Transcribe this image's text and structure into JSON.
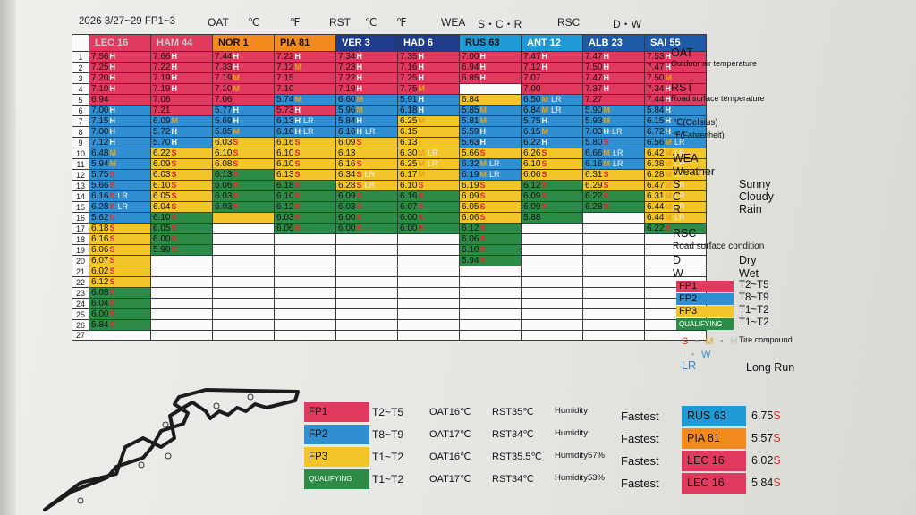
{
  "header": {
    "event": "2026 3/27~29 FP1~3",
    "oat": "OAT",
    "celsius": "℃",
    "fahrenheit": "℉",
    "rst": "RST",
    "wea": "WEA",
    "scr": "S・C・R",
    "rsc": "RSC",
    "dw": "D・W"
  },
  "colors": {
    "fp1": "#e03a5e",
    "fp2": "#2f8fd0",
    "fp3": "#f2c62b",
    "q": "#2e8b47",
    "white": "#fafafa",
    "m": "#e8a21a",
    "h": "#f4f4f4",
    "s": "#d9302a",
    "lr": "#f0f0f0"
  },
  "columns": [
    {
      "label": "LEC 16",
      "color": "#e03a5e",
      "fg": "#c9c9c9"
    },
    {
      "label": "HAM 44",
      "color": "#e03a5e",
      "fg": "#c9c9c9"
    },
    {
      "label": "NOR 1",
      "color": "#f28a1e",
      "fg": "#111111"
    },
    {
      "label": "PIA 81",
      "color": "#f28a1e",
      "fg": "#111111"
    },
    {
      "label": "VER 3",
      "color": "#1f3c8c",
      "fg": "#ffffff"
    },
    {
      "label": "HAD 6",
      "color": "#1f3c8c",
      "fg": "#ffffff"
    },
    {
      "label": "RUS 63",
      "color": "#1e9bd6",
      "fg": "#111111"
    },
    {
      "label": "ANT 12",
      "color": "#1e9bd6",
      "fg": "#ffffff"
    },
    {
      "label": "ALB 23",
      "color": "#1e5aa8",
      "fg": "#ffffff"
    },
    {
      "label": "SAI 55",
      "color": "#1e5aa8",
      "fg": "#ffffff"
    }
  ],
  "rows": [
    [
      [
        "fp1",
        "7.56",
        "H"
      ],
      [
        "fp1",
        "7.66",
        "H"
      ],
      [
        "fp1",
        "7.44",
        "H"
      ],
      [
        "fp1",
        "7.22",
        "H"
      ],
      [
        "fp1",
        "7.34",
        "H"
      ],
      [
        "fp1",
        "7.35",
        "H"
      ],
      [
        "fp1",
        "7.00",
        "H"
      ],
      [
        "fp1",
        "7.47",
        "H"
      ],
      [
        "fp1",
        "7.47",
        "H"
      ],
      [
        "fp1",
        "7.53",
        "H"
      ]
    ],
    [
      [
        "fp1",
        "7.25",
        "H"
      ],
      [
        "fp1",
        "7.22",
        "H"
      ],
      [
        "fp1",
        "7.33",
        "H"
      ],
      [
        "fp1",
        "7.12",
        "M"
      ],
      [
        "fp1",
        "7.23",
        "H"
      ],
      [
        "fp1",
        "7.16",
        "H"
      ],
      [
        "fp1",
        "6.94",
        "H"
      ],
      [
        "fp1",
        "7.12",
        "H"
      ],
      [
        "fp1",
        "7.50",
        "H"
      ],
      [
        "fp1",
        "7.47",
        "H"
      ]
    ],
    [
      [
        "fp1",
        "7.20",
        "H"
      ],
      [
        "fp1",
        "7.19",
        "H"
      ],
      [
        "fp1",
        "7.19",
        "M"
      ],
      [
        "fp1",
        "7.15",
        ""
      ],
      [
        "fp1",
        "7.22",
        "H"
      ],
      [
        "fp1",
        "7.25",
        "H"
      ],
      [
        "fp1",
        "6.85",
        "H"
      ],
      [
        "fp1",
        "7.07",
        ""
      ],
      [
        "fp1",
        "7.47",
        "H"
      ],
      [
        "fp1",
        "7.50",
        "M"
      ]
    ],
    [
      [
        "fp1",
        "7.10",
        "H"
      ],
      [
        "fp1",
        "7.19",
        "H"
      ],
      [
        "fp1",
        "7.10",
        "M"
      ],
      [
        "fp1",
        "7.10",
        ""
      ],
      [
        "fp1",
        "7.19",
        "H"
      ],
      [
        "fp1",
        "7.75",
        "M"
      ],
      [
        "white",
        "",
        ""
      ],
      [
        "fp1",
        "7.00",
        ""
      ],
      [
        "fp1",
        "7.37",
        "H"
      ],
      [
        "fp1",
        "7.34",
        "H"
      ]
    ],
    [
      [
        "fp1",
        "6.94",
        ""
      ],
      [
        "fp1",
        "7.06",
        ""
      ],
      [
        "fp1",
        "7.06",
        ""
      ],
      [
        "fp2",
        "5.74",
        "M"
      ],
      [
        "fp2",
        "6.60",
        "M"
      ],
      [
        "fp2",
        "5.91",
        "H"
      ],
      [
        "fp3",
        "6.84",
        ""
      ],
      [
        "fp2",
        "6.50",
        "M LR"
      ],
      [
        "fp1",
        "7.27",
        ""
      ],
      [
        "fp1",
        "7.44",
        "H"
      ]
    ],
    [
      [
        "fp2",
        "7.00",
        "H"
      ],
      [
        "fp1",
        "7.21",
        ""
      ],
      [
        "fp2",
        "5.77",
        "H"
      ],
      [
        "fp1",
        "5.73",
        "H"
      ],
      [
        "fp2",
        "5.96",
        "M"
      ],
      [
        "fp2",
        "6.18",
        "H"
      ],
      [
        "fp2",
        "5.85",
        "M"
      ],
      [
        "fp2",
        "6.84",
        "M LR"
      ],
      [
        "fp2",
        "5.90",
        "M"
      ],
      [
        "fp2",
        "5.84",
        "H"
      ]
    ],
    [
      [
        "fp2",
        "7.15",
        "H"
      ],
      [
        "fp2",
        "6.09",
        "M"
      ],
      [
        "fp2",
        "5.69",
        "H"
      ],
      [
        "fp2",
        "6.13",
        "H LR"
      ],
      [
        "fp2",
        "5.84",
        "H"
      ],
      [
        "fp3",
        "6.25",
        "M"
      ],
      [
        "fp2",
        "5.81",
        "M"
      ],
      [
        "fp2",
        "5.75",
        "H"
      ],
      [
        "fp2",
        "5.93",
        "M"
      ],
      [
        "fp2",
        "6.15",
        "H"
      ]
    ],
    [
      [
        "fp2",
        "7.00",
        "H"
      ],
      [
        "fp2",
        "5.72",
        "H"
      ],
      [
        "fp2",
        "5.85",
        "M"
      ],
      [
        "fp2",
        "6.10",
        "H LR"
      ],
      [
        "fp2",
        "6.16",
        "H LR"
      ],
      [
        "fp3",
        "6.15",
        ""
      ],
      [
        "fp2",
        "5.59",
        "H"
      ],
      [
        "fp2",
        "6.15",
        "M"
      ],
      [
        "fp2",
        "7.03",
        "H LR"
      ],
      [
        "fp2",
        "6.72",
        "H"
      ]
    ],
    [
      [
        "fp2",
        "7.12",
        "H"
      ],
      [
        "fp2",
        "5.70",
        "H"
      ],
      [
        "fp3",
        "6.03",
        "S"
      ],
      [
        "fp3",
        "6.16",
        "S"
      ],
      [
        "fp3",
        "6.09",
        "S"
      ],
      [
        "fp3",
        "6.13",
        ""
      ],
      [
        "fp2",
        "5.63",
        "H"
      ],
      [
        "fp2",
        "6.22",
        "H"
      ],
      [
        "fp2",
        "5.80",
        "S"
      ],
      [
        "fp2",
        "6.56",
        "M LR"
      ]
    ],
    [
      [
        "fp2",
        "6.48",
        "M"
      ],
      [
        "fp3",
        "6.22",
        "S"
      ],
      [
        "fp3",
        "6.10",
        "S"
      ],
      [
        "fp3",
        "6.10",
        "S"
      ],
      [
        "fp3",
        "6.13",
        ""
      ],
      [
        "fp3",
        "6.30",
        "M LR"
      ],
      [
        "fp3",
        "5.66",
        "S"
      ],
      [
        "fp3",
        "6.26",
        "S"
      ],
      [
        "fp2",
        "6.66",
        "M LR"
      ],
      [
        "fp3",
        "6.42",
        "M LR"
      ]
    ],
    [
      [
        "fp2",
        "5.94",
        "M"
      ],
      [
        "fp3",
        "6.09",
        "S"
      ],
      [
        "fp3",
        "6.08",
        "S"
      ],
      [
        "fp3",
        "6.10",
        "S"
      ],
      [
        "fp3",
        "6.16",
        "S"
      ],
      [
        "fp3",
        "6.25",
        "M LR"
      ],
      [
        "fp2",
        "6.32",
        "M LR"
      ],
      [
        "fp3",
        "6.10",
        "S"
      ],
      [
        "fp2",
        "6.16",
        "M LR"
      ],
      [
        "fp3",
        "6.38",
        "M LR"
      ]
    ],
    [
      [
        "fp2",
        "5.75",
        "S"
      ],
      [
        "fp3",
        "6.03",
        "S"
      ],
      [
        "q",
        "6.13",
        "S"
      ],
      [
        "fp3",
        "6.13",
        "S"
      ],
      [
        "fp3",
        "6.34",
        "S LR"
      ],
      [
        "fp3",
        "6.17",
        "M"
      ],
      [
        "fp2",
        "6.19",
        "M LR"
      ],
      [
        "fp3",
        "6.06",
        "S"
      ],
      [
        "fp3",
        "6.31",
        "S"
      ],
      [
        "fp3",
        "6.28",
        "M LR"
      ]
    ],
    [
      [
        "fp2",
        "5.66",
        "S"
      ],
      [
        "fp3",
        "6.10",
        "S"
      ],
      [
        "q",
        "6.06",
        "S"
      ],
      [
        "q",
        "6.18",
        "S"
      ],
      [
        "fp3",
        "6.28",
        "S LR"
      ],
      [
        "fp3",
        "6.10",
        "S"
      ],
      [
        "fp3",
        "6.19",
        "S"
      ],
      [
        "q",
        "6.12",
        "S"
      ],
      [
        "fp3",
        "6.29",
        "S"
      ],
      [
        "fp3",
        "6.47",
        "M LR"
      ]
    ],
    [
      [
        "fp2",
        "6.16",
        "S LR"
      ],
      [
        "fp3",
        "6.05",
        "S"
      ],
      [
        "q",
        "6.03",
        "S"
      ],
      [
        "q",
        "6.10",
        "S"
      ],
      [
        "q",
        "6.09",
        "S"
      ],
      [
        "q",
        "6.16",
        "S"
      ],
      [
        "fp3",
        "6.09",
        "S"
      ],
      [
        "q",
        "6.09",
        "S"
      ],
      [
        "q",
        "6.22",
        "S"
      ],
      [
        "fp3",
        "6.31",
        "M LR"
      ]
    ],
    [
      [
        "fp2",
        "6.28",
        "S LR"
      ],
      [
        "fp3",
        "6.04",
        "S"
      ],
      [
        "q",
        "6.03",
        "S"
      ],
      [
        "q",
        "6.12",
        "S"
      ],
      [
        "q",
        "6.03",
        "S"
      ],
      [
        "q",
        "6.07",
        "S"
      ],
      [
        "fp3",
        "6.05",
        "S"
      ],
      [
        "q",
        "6.09",
        "S"
      ],
      [
        "q",
        "6.28",
        "S"
      ],
      [
        "fp3",
        "6.44",
        "M LR"
      ]
    ],
    [
      [
        "fp2",
        "5.62",
        "S"
      ],
      [
        "q",
        "6.10",
        "S"
      ],
      [
        "fp3",
        "",
        ""
      ],
      [
        "q",
        "6.03",
        "S"
      ],
      [
        "q",
        "6.00",
        "S"
      ],
      [
        "q",
        "6.00",
        "S"
      ],
      [
        "fp3",
        "6.06",
        "S"
      ],
      [
        "q",
        "5.88",
        ""
      ],
      [
        "white",
        "",
        ""
      ],
      [
        "fp3",
        "6.44",
        "M LR"
      ]
    ],
    [
      [
        "fp3",
        "6.18",
        "S"
      ],
      [
        "q",
        "6.05",
        "S"
      ],
      [
        "white",
        "",
        ""
      ],
      [
        "q",
        "6.06",
        "S"
      ],
      [
        "q",
        "6.00",
        "S"
      ],
      [
        "q",
        "6.00",
        "S"
      ],
      [
        "q",
        "6.12",
        "S"
      ],
      [
        "white",
        "",
        ""
      ],
      [
        "white",
        "",
        ""
      ],
      [
        "q",
        "6.22",
        "S"
      ]
    ],
    [
      [
        "fp3",
        "6.16",
        "S"
      ],
      [
        "q",
        "6.00",
        "S"
      ],
      [
        "white",
        "",
        ""
      ],
      [
        "white",
        "",
        ""
      ],
      [
        "white",
        "",
        ""
      ],
      [
        "white",
        "",
        ""
      ],
      [
        "q",
        "6.06",
        "S"
      ],
      [
        "white",
        "",
        ""
      ],
      [
        "white",
        "",
        ""
      ],
      [
        "white",
        "",
        ""
      ]
    ],
    [
      [
        "fp3",
        "6.06",
        "S"
      ],
      [
        "q",
        "5.90",
        "S"
      ],
      [
        "white",
        "",
        ""
      ],
      [
        "white",
        "",
        ""
      ],
      [
        "white",
        "",
        ""
      ],
      [
        "white",
        "",
        ""
      ],
      [
        "q",
        "6.10",
        "S"
      ],
      [
        "white",
        "",
        ""
      ],
      [
        "white",
        "",
        ""
      ],
      [
        "white",
        "",
        ""
      ]
    ],
    [
      [
        "fp3",
        "6.07",
        "S"
      ],
      [
        "white",
        "",
        ""
      ],
      [
        "white",
        "",
        ""
      ],
      [
        "white",
        "",
        ""
      ],
      [
        "white",
        "",
        ""
      ],
      [
        "white",
        "",
        ""
      ],
      [
        "q",
        "5.94",
        "S"
      ],
      [
        "white",
        "",
        ""
      ],
      [
        "white",
        "",
        ""
      ],
      [
        "white",
        "",
        ""
      ]
    ],
    [
      [
        "fp3",
        "6.02",
        "S"
      ],
      [
        "white",
        "",
        ""
      ],
      [
        "white",
        "",
        ""
      ],
      [
        "white",
        "",
        ""
      ],
      [
        "white",
        "",
        ""
      ],
      [
        "white",
        "",
        ""
      ],
      [
        "white",
        "",
        ""
      ],
      [
        "white",
        "",
        ""
      ],
      [
        "white",
        "",
        ""
      ],
      [
        "white",
        "",
        ""
      ]
    ],
    [
      [
        "fp3",
        "6.12",
        "S"
      ],
      [
        "white",
        "",
        ""
      ],
      [
        "white",
        "",
        ""
      ],
      [
        "white",
        "",
        ""
      ],
      [
        "white",
        "",
        ""
      ],
      [
        "white",
        "",
        ""
      ],
      [
        "white",
        "",
        ""
      ],
      [
        "white",
        "",
        ""
      ],
      [
        "white",
        "",
        ""
      ],
      [
        "white",
        "",
        ""
      ]
    ],
    [
      [
        "q",
        "6.08",
        "S"
      ],
      [
        "white",
        "",
        ""
      ],
      [
        "white",
        "",
        ""
      ],
      [
        "white",
        "",
        ""
      ],
      [
        "white",
        "",
        ""
      ],
      [
        "white",
        "",
        ""
      ],
      [
        "white",
        "",
        ""
      ],
      [
        "white",
        "",
        ""
      ],
      [
        "white",
        "",
        ""
      ],
      [
        "white",
        "",
        ""
      ]
    ],
    [
      [
        "q",
        "6.04",
        "S"
      ],
      [
        "white",
        "",
        ""
      ],
      [
        "white",
        "",
        ""
      ],
      [
        "white",
        "",
        ""
      ],
      [
        "white",
        "",
        ""
      ],
      [
        "white",
        "",
        ""
      ],
      [
        "white",
        "",
        ""
      ],
      [
        "white",
        "",
        ""
      ],
      [
        "white",
        "",
        ""
      ],
      [
        "white",
        "",
        ""
      ]
    ],
    [
      [
        "q",
        "6.00",
        "S"
      ],
      [
        "white",
        "",
        ""
      ],
      [
        "white",
        "",
        ""
      ],
      [
        "white",
        "",
        ""
      ],
      [
        "white",
        "",
        ""
      ],
      [
        "white",
        "",
        ""
      ],
      [
        "white",
        "",
        ""
      ],
      [
        "white",
        "",
        ""
      ],
      [
        "white",
        "",
        ""
      ],
      [
        "white",
        "",
        ""
      ]
    ],
    [
      [
        "q",
        "5.84",
        "S"
      ],
      [
        "white",
        "",
        ""
      ],
      [
        "white",
        "",
        ""
      ],
      [
        "white",
        "",
        ""
      ],
      [
        "white",
        "",
        ""
      ],
      [
        "white",
        "",
        ""
      ],
      [
        "white",
        "",
        ""
      ],
      [
        "white",
        "",
        ""
      ],
      [
        "white",
        "",
        ""
      ],
      [
        "white",
        "",
        ""
      ]
    ],
    [
      [
        "white",
        "",
        ""
      ],
      [
        "white",
        "",
        ""
      ],
      [
        "white",
        "",
        ""
      ],
      [
        "white",
        "",
        ""
      ],
      [
        "white",
        "",
        ""
      ],
      [
        "white",
        "",
        ""
      ],
      [
        "white",
        "",
        ""
      ],
      [
        "white",
        "",
        ""
      ],
      [
        "white",
        "",
        ""
      ],
      [
        "white",
        "",
        ""
      ]
    ]
  ],
  "legend": {
    "oat": "OAT",
    "oat_desc": "Outdoor air temperature",
    "rst": "RST",
    "rst_desc": "Road surface temperature",
    "c": "℃(Celsius)",
    "f": "℉(Fahrenheit)",
    "wea": "WEA",
    "weather": "Weather",
    "s": "S",
    "sunny": "Sunny",
    "c2": "C",
    "cloudy": "Cloudy",
    "r": "R",
    "rain": "Rain",
    "rsc": "RSC",
    "rsc_desc": "Road surface condition",
    "d": "D",
    "dry": "Dry",
    "w": "W",
    "wet": "Wet",
    "fp1": "FP1",
    "fp1_t": "T2~T5",
    "fp2": "FP2",
    "fp2_t": "T8~T9",
    "fp3": "FP3",
    "fp3_t": "T1~T2",
    "q": "QUALIFYING",
    "q_t": "T1~T2",
    "compound_s": "S",
    "compound_m": "M",
    "compound_h": "H",
    "dot": "・",
    "compound_i": "I",
    "compound_w": "W",
    "compound_desc": "Tire compound",
    "lr": "LR",
    "lr_desc": "Long Run"
  },
  "sessions": [
    {
      "name": "FP1",
      "key": "fp1",
      "t": "T2~T5",
      "oat": "OAT16℃",
      "rst": "RST35℃",
      "hum": "Humidity"
    },
    {
      "name": "FP2",
      "key": "fp2",
      "t": "T8~T9",
      "oat": "OAT17℃",
      "rst": "RST34℃",
      "hum": "Humidity"
    },
    {
      "name": "FP3",
      "key": "fp3",
      "t": "T1~T2",
      "oat": "OAT16℃",
      "rst": "RST35.5℃",
      "hum": "Humidity57%"
    },
    {
      "name": "QUALIFYING",
      "key": "q",
      "t": "T1~T2",
      "oat": "OAT17℃",
      "rst": "RST34℃",
      "hum": "Humidity53%"
    }
  ],
  "fastest": [
    {
      "label": "Fastest",
      "driver": "RUS 63",
      "time": "6.75",
      "cmp": "S",
      "bg": "#1e9bd6",
      "fg": "#111111"
    },
    {
      "label": "Fastest",
      "driver": "PIA 81",
      "time": "5.57",
      "cmp": "S",
      "bg": "#f28a1e",
      "fg": "#111111"
    },
    {
      "label": "Fastest",
      "driver": "LEC 16",
      "time": "6.02",
      "cmp": "S",
      "bg": "#e03a5e",
      "fg": "#111111"
    },
    {
      "label": "Fastest",
      "driver": "LEC 16",
      "time": "5.84",
      "cmp": "S",
      "bg": "#e03a5e",
      "fg": "#111111"
    }
  ]
}
